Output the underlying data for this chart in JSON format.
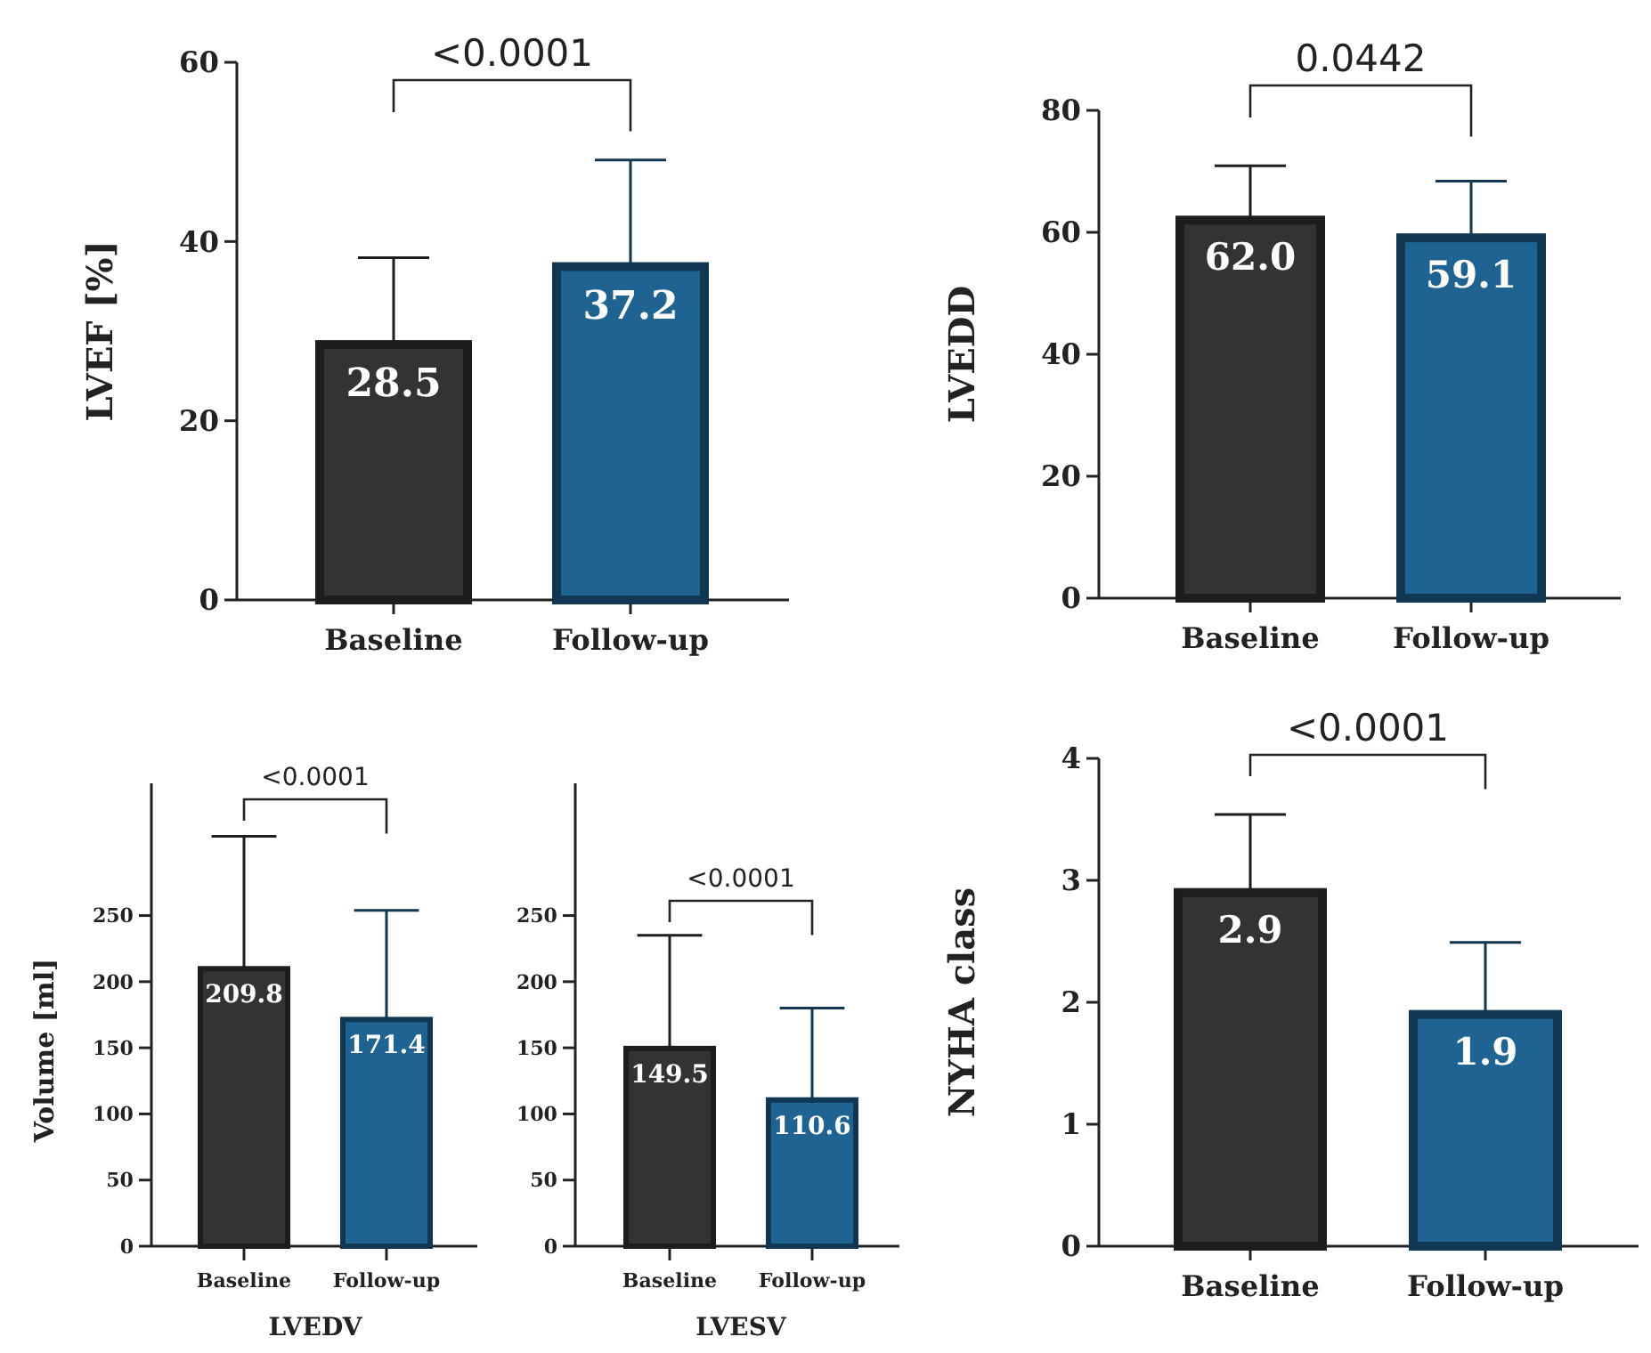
{
  "chart_data": [
    {
      "type": "bar",
      "ylabel": "LVEF [%]",
      "categories": [
        "Baseline",
        "Follow-up"
      ],
      "values": [
        28.5,
        37.2
      ],
      "colors": [
        "#333333",
        "#1e6391"
      ],
      "errors": [
        [
          28.5,
          38.2
        ],
        [
          37.2,
          49.1
        ]
      ],
      "value_labels": [
        "28.5",
        "37.2"
      ],
      "ylim": [
        0,
        60
      ],
      "yticks": [
        0,
        20,
        40,
        60
      ],
      "annotations": [
        "<0.0001"
      ]
    },
    {
      "type": "bar",
      "ylabel": "LVEDD",
      "categories": [
        "Baseline",
        "Follow-up"
      ],
      "values": [
        62.0,
        59.1
      ],
      "colors": [
        "#333333",
        "#1e6391"
      ],
      "errors": [
        [
          62.0,
          70.9
        ],
        [
          59.1,
          68.4
        ]
      ],
      "value_labels": [
        "62.0",
        "59.1"
      ],
      "ylim": [
        0,
        80
      ],
      "yticks": [
        0,
        20,
        40,
        60,
        80
      ],
      "annotations": [
        "0.0442"
      ]
    },
    {
      "type": "bar",
      "ylabel": "Volume [ml]",
      "xlabel": "LVEDV",
      "categories": [
        "Baseline",
        "Follow-up"
      ],
      "values": [
        209.8,
        171.4
      ],
      "colors": [
        "#333333",
        "#1e6391"
      ],
      "errors": [
        [
          209.8,
          310
        ],
        [
          171.4,
          254
        ]
      ],
      "value_labels": [
        "209.8",
        "171.4"
      ],
      "ylim": [
        0,
        350
      ],
      "yticks": [
        0,
        50,
        100,
        150,
        200,
        250
      ],
      "annotations": [
        "<0.0001"
      ]
    },
    {
      "type": "bar",
      "xlabel": "LVESV",
      "categories": [
        "Baseline",
        "Follow-up"
      ],
      "values": [
        149.5,
        110.6
      ],
      "colors": [
        "#333333",
        "#1e6391"
      ],
      "errors": [
        [
          149.5,
          235
        ],
        [
          110.6,
          180
        ]
      ],
      "value_labels": [
        "149.5",
        "110.6"
      ],
      "ylim": [
        0,
        350
      ],
      "yticks": [
        0,
        50,
        100,
        150,
        200,
        250
      ],
      "annotations": [
        "<0.0001"
      ]
    },
    {
      "type": "bar",
      "ylabel": "NYHA class",
      "categories": [
        "Baseline",
        "Follow-up"
      ],
      "values": [
        2.9,
        1.9
      ],
      "colors": [
        "#333333",
        "#1e6391"
      ],
      "errors": [
        [
          2.9,
          3.54
        ],
        [
          1.9,
          2.49
        ]
      ],
      "value_labels": [
        "2.9",
        "1.9"
      ],
      "ylim": [
        0,
        4
      ],
      "yticks": [
        0,
        1,
        2,
        3,
        4
      ],
      "annotations": [
        "<0.0001"
      ]
    }
  ]
}
